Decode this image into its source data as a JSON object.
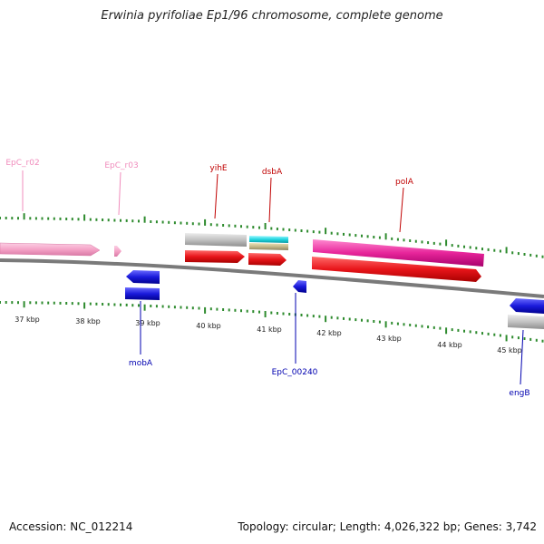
{
  "title": "Erwinia pyrifoliae Ep1/96 chromosome, complete genome",
  "footer": {
    "accession": "Accession: NC_012214",
    "topology": "Topology: circular; Length: 4,026,322 bp; Genes: 3,742"
  },
  "colors": {
    "backbone": "#8a8a8a",
    "ticks": "#2e8b2e",
    "rRNA": "#f5a3c7",
    "gene_forward": "#e8151a",
    "gene_reverse": "#1a1adb",
    "cds_magenta": "#e7259a",
    "misc_gray": "#c2c2c2",
    "misc_cyan": "#22d6e0",
    "misc_tan": "#c4b889"
  },
  "ruler": {
    "labels": [
      "37 kbp",
      "38 kbp",
      "39 kbp",
      "40 kbp",
      "41 kbp",
      "42 kbp",
      "43 kbp",
      "44 kbp",
      "45 kbp"
    ]
  },
  "features": {
    "forward_labels": [
      {
        "name": "EpC_r02",
        "color": "#f08cbc"
      },
      {
        "name": "EpC_r03",
        "color": "#f08cbc"
      },
      {
        "name": "yihE",
        "color": "#c00000"
      },
      {
        "name": "dsbA",
        "color": "#c00000"
      },
      {
        "name": "polA",
        "color": "#c00000"
      }
    ],
    "reverse_labels": [
      {
        "name": "mobA",
        "color": "#0000b0"
      },
      {
        "name": "EpC_00240",
        "color": "#0000b0"
      },
      {
        "name": "engB",
        "color": "#0000b0"
      }
    ]
  }
}
